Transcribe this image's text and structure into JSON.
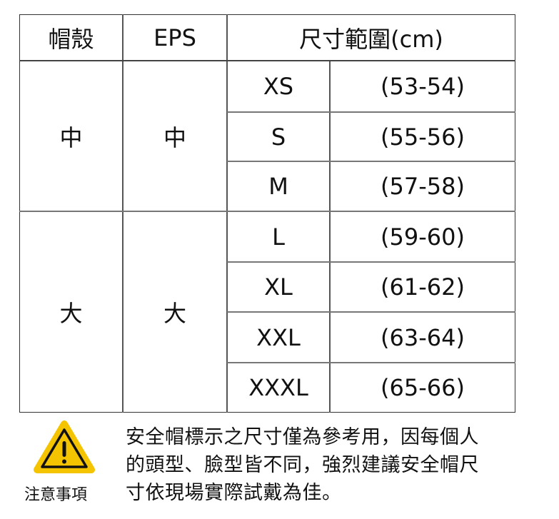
{
  "table": {
    "headers": [
      "帽殼",
      "EPS",
      "尺寸範圍(cm)"
    ],
    "groups": [
      {
        "shell": "中",
        "eps": "中"
      },
      {
        "shell": "大",
        "eps": "大"
      }
    ],
    "rows": [
      {
        "size": "XS",
        "range": "(53-54)"
      },
      {
        "size": "S",
        "range": "(55-56)"
      },
      {
        "size": "M",
        "range": "(57-58)"
      },
      {
        "size": "L",
        "range": "(59-60)"
      },
      {
        "size": "XL",
        "range": "(61-62)"
      },
      {
        "size": "XXL",
        "range": "(63-64)"
      },
      {
        "size": "XXXL",
        "range": "(65-66)"
      }
    ]
  },
  "notice": {
    "icon": "warning-icon",
    "icon_color": "#F5C400",
    "label": "注意事項",
    "lines": [
      "安全帽標示之尺寸僅為參考用，因每個人",
      "的頭型、臉型皆不同，強烈建議安全帽尺",
      "寸依現場實際試戴為佳。"
    ]
  }
}
